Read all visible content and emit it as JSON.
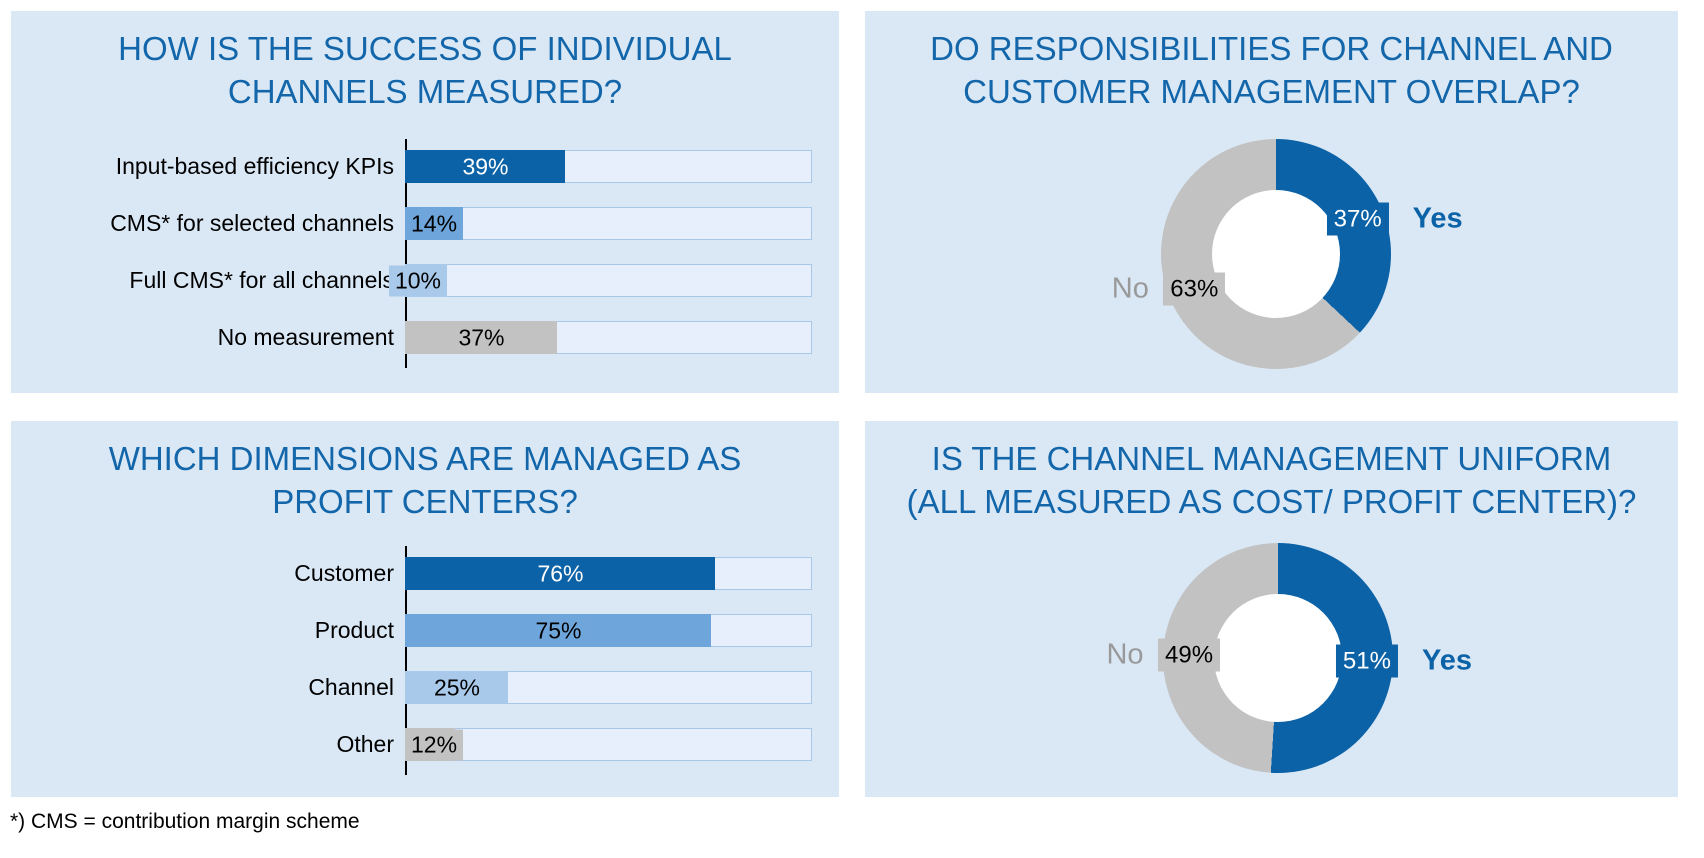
{
  "page": {
    "footnote": "*) CMS = contribution margin scheme"
  },
  "colors": {
    "panel_bg": "#dae8f6",
    "title_blue": "#1366a9",
    "dark_blue": "#0c62a6",
    "medium_blue": "#6ea5db",
    "light_blue": "#a9c9ea",
    "gray": "#c2c2c2",
    "no_label_gray": "#999999",
    "track_fill": "#e6effb",
    "track_border": "#a8c8e8",
    "donut_hole": "#ffffff",
    "axis_black": "#000000"
  },
  "panels": [
    {
      "title_lines": [
        "HOW IS THE SUCCESS OF INDIVIDUAL",
        "CHANNELS MEASURED?"
      ]
    },
    {
      "title_lines": [
        "DO RESPONSIBILITIES FOR CHANNEL AND",
        "CUSTOMER MANAGEMENT OVERLAP?"
      ]
    },
    {
      "title_lines": [
        "WHICH DIMENSIONS ARE MANAGED AS",
        "PROFIT CENTERS?"
      ]
    },
    {
      "title_lines": [
        "IS THE CHANNEL MANAGEMENT UNIFORM",
        "(ALL MEASURED AS COST/ PROFIT CENTER)?"
      ]
    }
  ],
  "chart_data": [
    {
      "type": "bar",
      "orientation": "horizontal",
      "title": "HOW IS THE SUCCESS OF INDIVIDUAL CHANNELS MEASURED?",
      "unit": "%",
      "xlim": [
        0,
        100
      ],
      "grid": false,
      "categories": [
        "Input-based efficiency KPIs",
        "CMS* for selected channels",
        "Full CMS* for all channels",
        "No measurement"
      ],
      "values": [
        39,
        14,
        10,
        37
      ],
      "data_labels": [
        "39%",
        "14%",
        "10%",
        "37%"
      ],
      "colors": [
        "#0c62a6",
        "#6ea5db",
        "#a9c9ea",
        "#c2c2c2"
      ],
      "value_text_colors": [
        "#ffffff",
        "#000000",
        "#000000",
        "#000000"
      ],
      "label_align": [
        "center",
        "start",
        "end",
        "center"
      ]
    },
    {
      "type": "pie",
      "subtype": "donut",
      "title": "DO RESPONSIBILITIES FOR CHANNEL AND CUSTOMER MANAGEMENT OVERLAP?",
      "unit": "%",
      "start_angle_deg": 0,
      "direction": "clockwise",
      "labels": [
        "Yes",
        "No"
      ],
      "values": [
        37,
        63
      ],
      "data_labels": [
        "37%",
        "63%"
      ],
      "colors": [
        "#0c62a6",
        "#c2c2c2"
      ],
      "value_text_colors": [
        "#ffffff",
        "#000000"
      ],
      "side_label_colors": [
        "#0c62a6",
        "#999999"
      ],
      "side_label_bold": [
        true,
        false
      ]
    },
    {
      "type": "bar",
      "orientation": "horizontal",
      "title": "WHICH DIMENSIONS ARE MANAGED AS PROFIT CENTERS?",
      "unit": "%",
      "xlim": [
        0,
        100
      ],
      "grid": false,
      "categories": [
        "Customer",
        "Product",
        "Channel",
        "Other"
      ],
      "values": [
        76,
        75,
        25,
        12
      ],
      "data_labels": [
        "76%",
        "75%",
        "25%",
        "12%"
      ],
      "colors": [
        "#0c62a6",
        "#6ea5db",
        "#a9c9ea",
        "#c2c2c2"
      ],
      "value_text_colors": [
        "#ffffff",
        "#000000",
        "#000000",
        "#000000"
      ],
      "label_align": [
        "center",
        "center",
        "center",
        "start"
      ]
    },
    {
      "type": "pie",
      "subtype": "donut",
      "title": "IS THE CHANNEL MANAGEMENT UNIFORM (ALL MEASURED AS COST/ PROFIT CENTER)?",
      "unit": "%",
      "start_angle_deg": 0,
      "direction": "clockwise",
      "labels": [
        "Yes",
        "No"
      ],
      "values": [
        51,
        49
      ],
      "data_labels": [
        "51%",
        "49%"
      ],
      "colors": [
        "#0c62a6",
        "#c2c2c2"
      ],
      "value_text_colors": [
        "#ffffff",
        "#000000"
      ],
      "side_label_colors": [
        "#0c62a6",
        "#999999"
      ],
      "side_label_bold": [
        true,
        false
      ]
    }
  ]
}
